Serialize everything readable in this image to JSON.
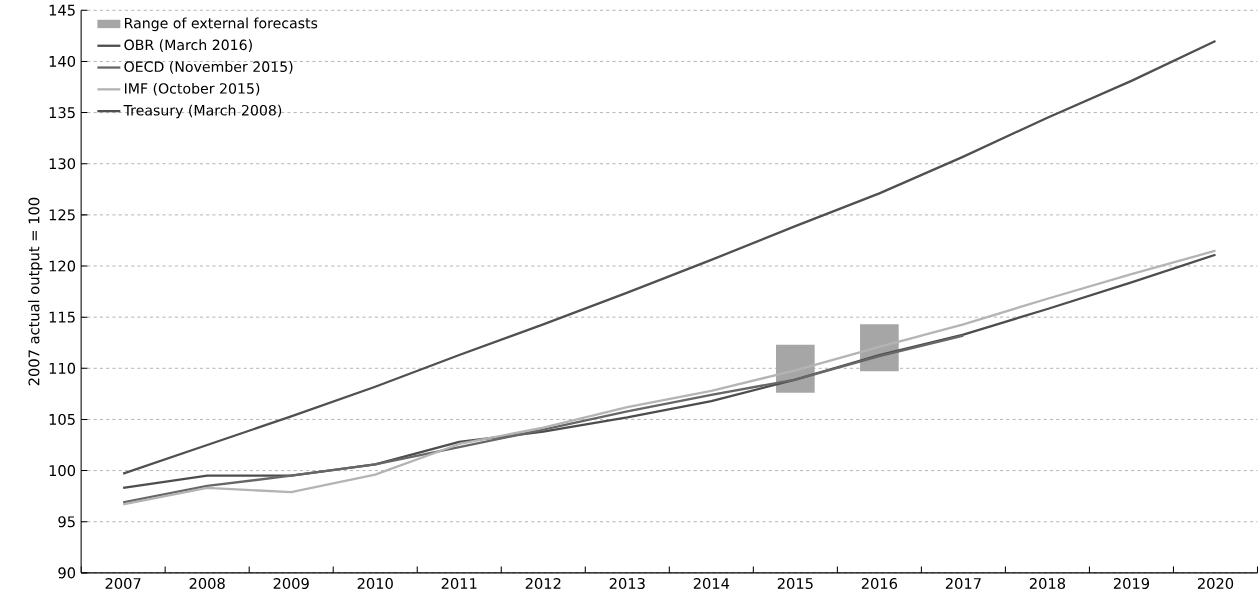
{
  "chart_data": {
    "type": "line",
    "ylabel": "2007 actual output = 100",
    "categories": [
      "2007",
      "2008",
      "2009",
      "2010",
      "2011",
      "2012",
      "2013",
      "2014",
      "2015",
      "2016",
      "2017",
      "2018",
      "2019",
      "2020"
    ],
    "ylim": [
      90,
      145
    ],
    "yticks": [
      90,
      95,
      100,
      105,
      110,
      115,
      120,
      125,
      130,
      135,
      140,
      145
    ],
    "grid": "y",
    "legend": "top left",
    "series": [
      {
        "name": "Range of external forecasts",
        "type": "bar",
        "color": "#a6a6a6",
        "base": [
          null,
          null,
          null,
          null,
          null,
          null,
          null,
          null,
          107.6,
          109.7,
          null,
          null,
          null,
          null
        ],
        "values": [
          null,
          null,
          null,
          null,
          null,
          null,
          null,
          null,
          4.7,
          4.6,
          null,
          null,
          null,
          null
        ]
      },
      {
        "name": "OBR (March 2016)",
        "color": "#4d4d4d",
        "values": [
          98.3,
          99.5,
          99.5,
          100.6,
          102.8,
          103.8,
          105.2,
          106.8,
          108.9,
          111.3,
          113.3,
          115.8,
          118.4,
          121.1
        ]
      },
      {
        "name": "OECD (November 2015)",
        "color": "#676767",
        "values": [
          96.9,
          98.5,
          99.5,
          100.6,
          102.3,
          104.0,
          105.8,
          107.4,
          108.9,
          111.2,
          113.2,
          null,
          null,
          null
        ]
      },
      {
        "name": "IMF (October 2015)",
        "color": "#b4b4b4",
        "values": [
          96.7,
          98.3,
          97.9,
          99.6,
          102.6,
          104.2,
          106.2,
          107.8,
          109.8,
          112.1,
          114.3,
          116.8,
          119.2,
          121.5
        ]
      },
      {
        "name": "Treasury (March 2008)",
        "color": "#505050",
        "values": [
          99.7,
          102.5,
          105.3,
          108.2,
          111.3,
          114.3,
          117.4,
          120.6,
          123.9,
          127.1,
          130.7,
          134.5,
          138.1,
          142.0
        ]
      }
    ]
  }
}
